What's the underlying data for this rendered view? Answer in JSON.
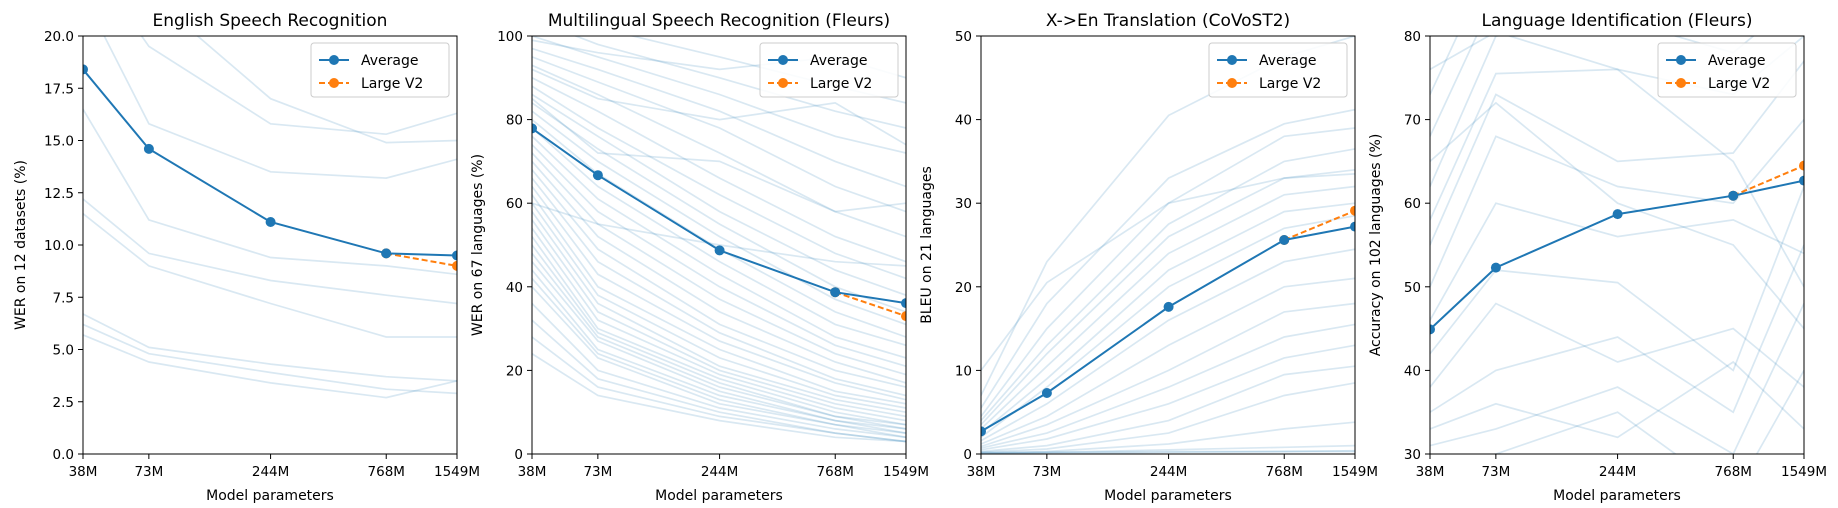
{
  "chart_data": [
    {
      "type": "line",
      "title": "English Speech Recognition",
      "xlabel": "Model parameters",
      "ylabel": "WER on 12 datasets (%)",
      "categories": [
        "38M",
        "73M",
        "244M",
        "768M",
        "1549M"
      ],
      "x": [
        38,
        73,
        244,
        768,
        1549
      ],
      "xscale": "log",
      "ylim": [
        0,
        20
      ],
      "yticks": [
        "0.0",
        "2.5",
        "5.0",
        "7.5",
        "10.0",
        "12.5",
        "15.0",
        "17.5",
        "20.0"
      ],
      "legend": {
        "entries": [
          "Average",
          "Large V2"
        ],
        "placement": "top-right"
      },
      "series": [
        {
          "name": "Average",
          "x": [
            38,
            73,
            244,
            768,
            1549
          ],
          "values": [
            18.4,
            14.6,
            11.1,
            9.6,
            9.5
          ],
          "color": "#1f77b4",
          "style": "solid-marker"
        },
        {
          "name": "Large V2",
          "x": [
            768,
            1549
          ],
          "values": [
            9.6,
            9.0
          ],
          "color": "#ff7f0e",
          "style": "dashed-marker"
        }
      ],
      "background_series": [
        [
          24.0,
          19.5,
          15.8,
          15.3,
          16.3
        ],
        [
          22.0,
          15.8,
          13.5,
          13.2,
          14.1
        ],
        [
          16.5,
          11.2,
          9.4,
          9.0,
          8.6
        ],
        [
          12.2,
          9.6,
          8.3,
          7.6,
          7.2
        ],
        [
          11.5,
          9.0,
          7.2,
          5.6,
          5.6
        ],
        [
          6.7,
          5.1,
          4.3,
          3.7,
          3.5
        ],
        [
          6.2,
          4.8,
          3.9,
          3.1,
          2.9
        ],
        [
          5.7,
          4.4,
          3.4,
          2.7,
          3.5
        ],
        [
          28.0,
          22.0,
          17.0,
          14.9,
          15.0
        ]
      ]
    },
    {
      "type": "line",
      "title": "Multilingual Speech Recognition (Fleurs)",
      "xlabel": "Model parameters",
      "ylabel": "WER on 67 languages (%)",
      "categories": [
        "38M",
        "73M",
        "244M",
        "768M",
        "1549M"
      ],
      "x": [
        38,
        73,
        244,
        768,
        1549
      ],
      "xscale": "log",
      "ylim": [
        0,
        100
      ],
      "yticks": [
        "0",
        "20",
        "40",
        "60",
        "80",
        "100"
      ],
      "legend": {
        "entries": [
          "Average",
          "Large V2"
        ],
        "placement": "top-right"
      },
      "series": [
        {
          "name": "Average",
          "x": [
            38,
            73,
            244,
            768,
            1549
          ],
          "values": [
            77.9,
            66.7,
            48.7,
            38.7,
            36.1
          ],
          "color": "#1f77b4",
          "style": "solid-marker"
        },
        {
          "name": "Large V2",
          "x": [
            768,
            1549
          ],
          "values": [
            38.7,
            33.0
          ],
          "color": "#ff7f0e",
          "style": "dashed-marker"
        }
      ],
      "background_series": [
        [
          108,
          102,
          95,
          88,
          84
        ],
        [
          104,
          98,
          90,
          82,
          78
        ],
        [
          100,
          95,
          86,
          76,
          72
        ],
        [
          97,
          92,
          82,
          70,
          64
        ],
        [
          95,
          89,
          78,
          64,
          58
        ],
        [
          93,
          86,
          72,
          58,
          52
        ],
        [
          90,
          82,
          66,
          52,
          46
        ],
        [
          88,
          78,
          62,
          48,
          42
        ],
        [
          86,
          76,
          58,
          44,
          38
        ],
        [
          84,
          73,
          55,
          40,
          34
        ],
        [
          82,
          70,
          52,
          37,
          31
        ],
        [
          80,
          67,
          49,
          34,
          28
        ],
        [
          78,
          64,
          46,
          31,
          26
        ],
        [
          76,
          61,
          43,
          28,
          23
        ],
        [
          74,
          58,
          40,
          26,
          21
        ],
        [
          72,
          55,
          37,
          24,
          19
        ],
        [
          70,
          52,
          34,
          22,
          17
        ],
        [
          68,
          49,
          31,
          20,
          16
        ],
        [
          66,
          46,
          29,
          18,
          14
        ],
        [
          64,
          43,
          27,
          17,
          13
        ],
        [
          62,
          40,
          25,
          15,
          12
        ],
        [
          60,
          38,
          23,
          14,
          11
        ],
        [
          58,
          36,
          21,
          13,
          10
        ],
        [
          56,
          34,
          20,
          12,
          9
        ],
        [
          54,
          32,
          19,
          11,
          8
        ],
        [
          52,
          30,
          18,
          10,
          7
        ],
        [
          50,
          29,
          17,
          9,
          7
        ],
        [
          48,
          28,
          16,
          9,
          6
        ],
        [
          46,
          27,
          15,
          8,
          6
        ],
        [
          44,
          25,
          14,
          8,
          5
        ],
        [
          42,
          24,
          13,
          7,
          5
        ],
        [
          40,
          23,
          12,
          7,
          4
        ],
        [
          36,
          20,
          11,
          6,
          4
        ],
        [
          32,
          18,
          10,
          5,
          3
        ],
        [
          28,
          16,
          9,
          5,
          3
        ],
        [
          24,
          14,
          8,
          4,
          3
        ],
        [
          92,
          85,
          80,
          84,
          74
        ],
        [
          99,
          96,
          92,
          95,
          90
        ],
        [
          85,
          72,
          70,
          58,
          60
        ],
        [
          60,
          55,
          50,
          46,
          45
        ]
      ]
    },
    {
      "type": "line",
      "title": "X->En Translation (CoVoST2)",
      "xlabel": "Model parameters",
      "ylabel": "BLEU on 21 languages",
      "categories": [
        "38M",
        "73M",
        "244M",
        "768M",
        "1549M"
      ],
      "x": [
        38,
        73,
        244,
        768,
        1549
      ],
      "xscale": "log",
      "ylim": [
        0,
        50
      ],
      "yticks": [
        "0",
        "10",
        "20",
        "30",
        "40",
        "50"
      ],
      "legend": {
        "entries": [
          "Average",
          "Large V2"
        ],
        "placement": "top-right"
      },
      "series": [
        {
          "name": "Average",
          "x": [
            38,
            73,
            244,
            768,
            1549
          ],
          "values": [
            2.7,
            7.3,
            17.6,
            25.6,
            27.2
          ],
          "color": "#1f77b4",
          "style": "solid-marker"
        },
        {
          "name": "Large V2",
          "x": [
            768,
            1549
          ],
          "values": [
            25.6,
            29.1
          ],
          "color": "#ff7f0e",
          "style": "dashed-marker"
        }
      ],
      "background_series": [
        [
          7.0,
          23.0,
          40.5,
          47.5,
          50.0
        ],
        [
          5.5,
          18.0,
          33.0,
          39.5,
          41.2
        ],
        [
          4.5,
          15.0,
          30.0,
          38.0,
          39.0
        ],
        [
          4.0,
          13.0,
          27.5,
          35.0,
          36.5
        ],
        [
          3.5,
          12.0,
          26.0,
          33.0,
          34.0
        ],
        [
          3.0,
          10.5,
          24.0,
          31.0,
          32.0
        ],
        [
          2.5,
          9.0,
          22.0,
          29.0,
          30.0
        ],
        [
          2.0,
          8.0,
          20.0,
          27.0,
          28.5
        ],
        [
          1.6,
          6.0,
          16.0,
          23.0,
          24.5
        ],
        [
          1.2,
          4.5,
          13.0,
          20.0,
          21.0
        ],
        [
          0.9,
          3.5,
          10.0,
          17.0,
          18.0
        ],
        [
          0.7,
          2.5,
          8.0,
          14.0,
          15.5
        ],
        [
          0.5,
          1.8,
          6.0,
          11.5,
          13.0
        ],
        [
          0.3,
          1.0,
          4.0,
          9.5,
          10.5
        ],
        [
          0.2,
          0.6,
          2.5,
          7.0,
          8.5
        ],
        [
          0.1,
          0.3,
          1.2,
          3.0,
          3.8
        ],
        [
          0.1,
          0.2,
          0.5,
          0.8,
          1.0
        ],
        [
          0.0,
          0.1,
          0.2,
          0.3,
          0.4
        ],
        [
          10.0,
          20.5,
          30.0,
          33.0,
          33.5
        ],
        [
          0.2,
          0.2,
          0.3,
          0.3,
          0.3
        ]
      ]
    },
    {
      "type": "line",
      "title": "Language Identification (Fleurs)",
      "xlabel": "Model parameters",
      "ylabel": "Accuracy on 102 languages (%)",
      "categories": [
        "38M",
        "73M",
        "244M",
        "768M",
        "1549M"
      ],
      "x": [
        38,
        73,
        244,
        768,
        1549
      ],
      "xscale": "log",
      "ylim": [
        30,
        80
      ],
      "yticks": [
        "30",
        "40",
        "50",
        "60",
        "70",
        "80"
      ],
      "legend": {
        "entries": [
          "Average",
          "Large V2"
        ],
        "placement": "top-right"
      },
      "series": [
        {
          "name": "Average",
          "x": [
            38,
            73,
            244,
            768,
            1549
          ],
          "values": [
            44.9,
            52.3,
            58.7,
            60.9,
            62.7
          ],
          "color": "#1f77b4",
          "style": "solid-marker"
        },
        {
          "name": "Large V2",
          "x": [
            768,
            1549
          ],
          "values": [
            60.9,
            64.5
          ],
          "color": "#ff7f0e",
          "style": "dashed-marker"
        }
      ],
      "background_series": [
        [
          73.0,
          90.0,
          95.0,
          96.0,
          97.0
        ],
        [
          68.0,
          85.0,
          88.0,
          84.0,
          92.0
        ],
        [
          62.0,
          80.0,
          82.0,
          78.0,
          85.0
        ],
        [
          58.0,
          75.5,
          76.0,
          73.0,
          80.0
        ],
        [
          55.0,
          73.0,
          65.0,
          66.0,
          77.0
        ],
        [
          50.0,
          68.0,
          62.0,
          60.0,
          70.0
        ],
        [
          46.0,
          60.0,
          56.0,
          58.0,
          54.0
        ],
        [
          42.0,
          52.0,
          50.5,
          40.0,
          62.0
        ],
        [
          38.0,
          48.0,
          41.0,
          45.0,
          38.0
        ],
        [
          35.0,
          40.0,
          44.0,
          35.0,
          55.0
        ],
        [
          33.0,
          36.0,
          32.0,
          41.0,
          33.0
        ],
        [
          31.0,
          33.0,
          38.0,
          30.0,
          48.0
        ],
        [
          28.0,
          30.0,
          35.0,
          25.0,
          40.0
        ],
        [
          65.0,
          72.0,
          60.0,
          55.0,
          45.0
        ],
        [
          76.0,
          80.5,
          76.0,
          65.0,
          50.0
        ]
      ]
    }
  ]
}
